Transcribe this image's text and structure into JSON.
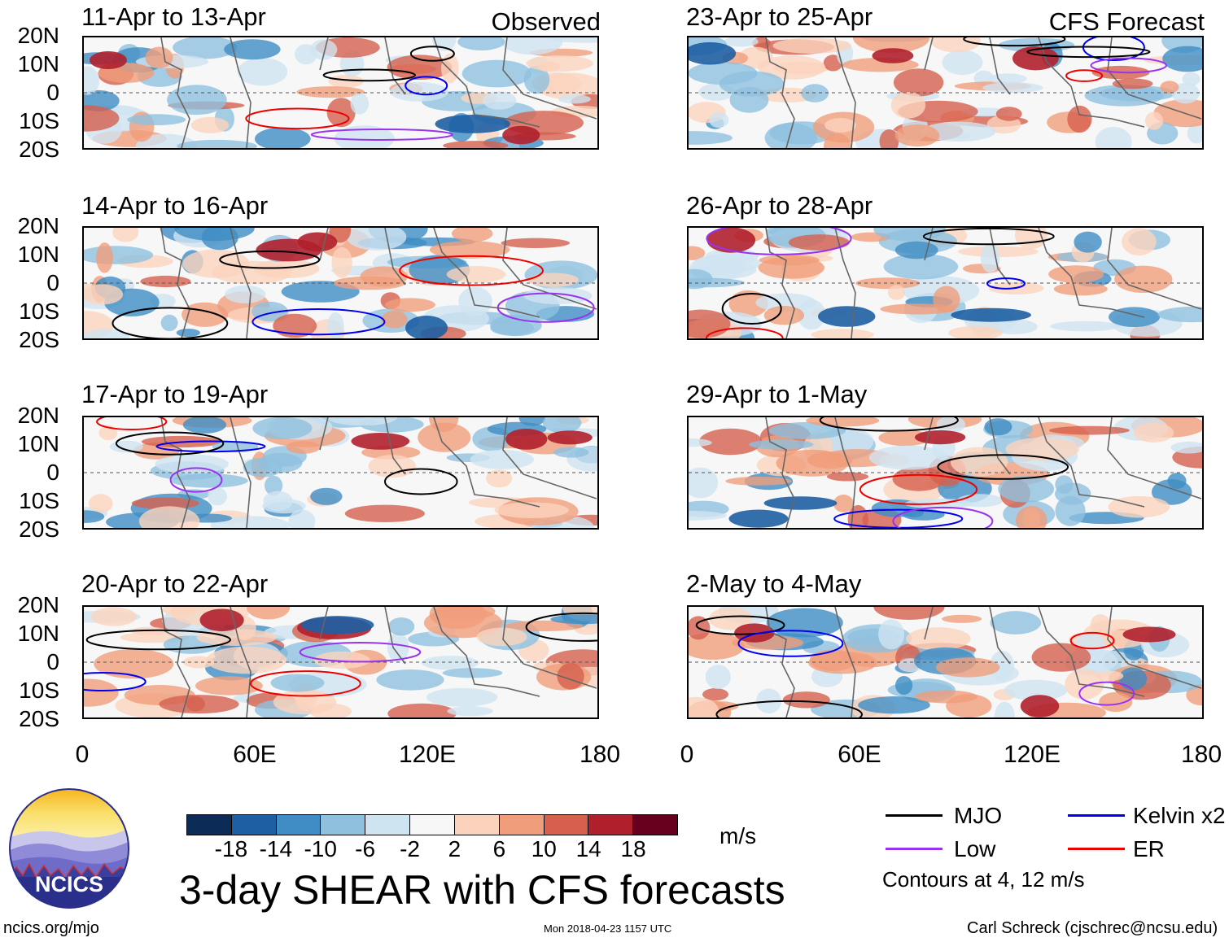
{
  "panels": [
    {
      "title": "11-Apr to 13-Apr",
      "tag": "Observed"
    },
    {
      "title": "14-Apr to 16-Apr",
      "tag": ""
    },
    {
      "title": "17-Apr to 19-Apr",
      "tag": ""
    },
    {
      "title": "20-Apr to 22-Apr",
      "tag": ""
    },
    {
      "title": "23-Apr to 25-Apr",
      "tag": "CFS Forecast"
    },
    {
      "title": "26-Apr to 28-Apr",
      "tag": ""
    },
    {
      "title": "29-Apr to 1-May",
      "tag": ""
    },
    {
      "title": "2-May to 4-May",
      "tag": ""
    }
  ],
  "lat_labels": [
    "20N",
    "10N",
    "0",
    "10S",
    "20S"
  ],
  "lon_labels": [
    "0",
    "60E",
    "120E",
    "180"
  ],
  "colorbar": {
    "labels": [
      "-18",
      "-14",
      "-10",
      "-6",
      "-2",
      "2",
      "6",
      "10",
      "14",
      "18"
    ],
    "colors": [
      "#0d2b57",
      "#1e5fa3",
      "#3f8dc4",
      "#8fc0de",
      "#cfe4f1",
      "#f7f7f7",
      "#fbd3bd",
      "#f09d7b",
      "#d6604d",
      "#b0202c",
      "#67001f"
    ],
    "units": "m/s"
  },
  "title": "3-day SHEAR with CFS forecasts",
  "legend": {
    "mjo": {
      "label": "MJO",
      "color": "#000000"
    },
    "kelvin": {
      "label": "Kelvin x2",
      "color": "#0000ee"
    },
    "low": {
      "label": "Low",
      "color": "#9933ee"
    },
    "er": {
      "label": "ER",
      "color": "#ee0000"
    },
    "note": "Contours at 4, 12 m/s"
  },
  "logo_text": "NCICS",
  "footer": {
    "left": "ncics.org/mjo",
    "center": "Mon 2018-04-23 1157 UTC",
    "right": "Carl Schreck (cjschrec@ncsu.edu)"
  }
}
